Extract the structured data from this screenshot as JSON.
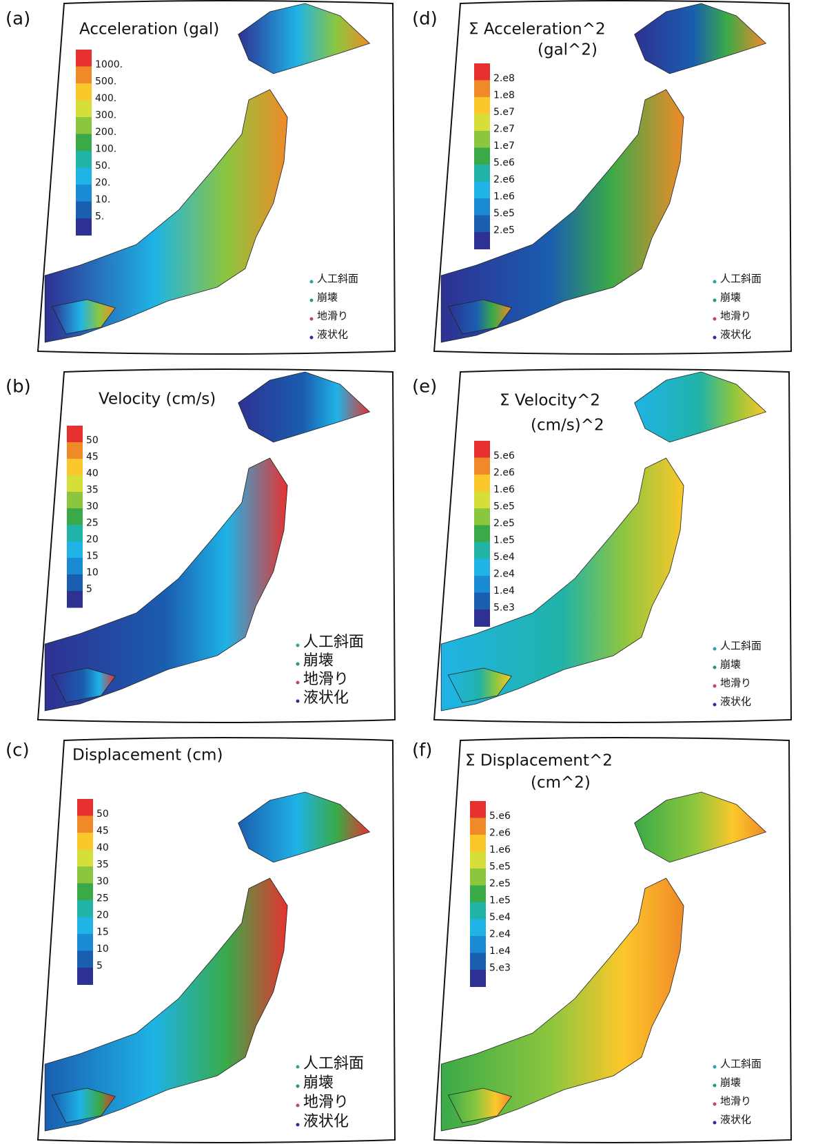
{
  "panels": [
    {
      "label": "(a)",
      "title_lines": [
        "Acceleration (gal)"
      ],
      "colorbar": [
        "1000.",
        "500.",
        "400.",
        "300.",
        "200.",
        "100.",
        "50.",
        "20.",
        "10.",
        "5."
      ],
      "legend": [
        "人工斜面",
        "崩壊",
        "地滑り",
        "液状化"
      ]
    },
    {
      "label": "(b)",
      "title_lines": [
        "Velocity (cm/s)"
      ],
      "colorbar": [
        "50",
        "45",
        "40",
        "35",
        "30",
        "25",
        "20",
        "15",
        "10",
        "5"
      ],
      "legend": [
        "人工斜面",
        "崩壊",
        "地滑り",
        "液状化"
      ]
    },
    {
      "label": "(c)",
      "title_lines": [
        "Displacement (cm)"
      ],
      "colorbar": [
        "50",
        "45",
        "40",
        "35",
        "30",
        "25",
        "20",
        "15",
        "10",
        "5"
      ],
      "legend": [
        "人工斜面",
        "崩壊",
        "地滑り",
        "液状化"
      ]
    },
    {
      "label": "(d)",
      "title_lines": [
        "Σ Acceleration^2",
        "(gal^2)"
      ],
      "colorbar": [
        "2.e8",
        "1.e8",
        "5.e7",
        "2.e7",
        "1.e7",
        "5.e6",
        "2.e6",
        "1.e6",
        "5.e5",
        "2.e5"
      ],
      "legend": [
        "人工斜面",
        "崩壊",
        "地滑り",
        "液状化"
      ]
    },
    {
      "label": "(e)",
      "title_lines": [
        "Σ Velocity^2",
        "(cm/s)^2"
      ],
      "colorbar": [
        "5.e6",
        "2.e6",
        "1.e6",
        "5.e5",
        "2.e5",
        "1.e5",
        "5.e4",
        "2.e4",
        "1.e4",
        "5.e3"
      ],
      "legend": [
        "人工斜面",
        "崩壊",
        "地滑り",
        "液状化"
      ]
    },
    {
      "label": "(f)",
      "title_lines": [
        "Σ Displacement^2",
        "(cm^2)"
      ],
      "colorbar": [
        "5.e6",
        "2.e6",
        "1.e6",
        "5.e5",
        "2.e5",
        "1.e5",
        "5.e4",
        "2.e4",
        "1.e4",
        "5.e3"
      ],
      "legend": [
        "人工斜面",
        "崩壊",
        "地滑り",
        "液状化"
      ]
    }
  ]
}
